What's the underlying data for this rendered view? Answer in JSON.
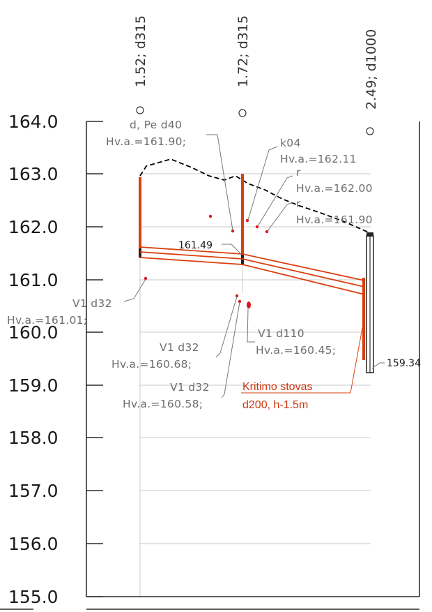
{
  "y_axis": {
    "ticks": [
      {
        "value": 164,
        "label": "164.0"
      },
      {
        "value": 163,
        "label": "163.0"
      },
      {
        "value": 162,
        "label": "162.0"
      },
      {
        "value": 161,
        "label": "161.0"
      },
      {
        "value": 160,
        "label": "160.0"
      },
      {
        "value": 159,
        "label": "159.0"
      },
      {
        "value": 158,
        "label": "158.0"
      },
      {
        "value": 157,
        "label": "157.0"
      },
      {
        "value": 156,
        "label": "156.0"
      },
      {
        "value": 155,
        "label": "155.0"
      }
    ]
  },
  "stations": [
    {
      "label": "1.52; d315"
    },
    {
      "label": "1.72; d315"
    },
    {
      "label": "2.49; d1000"
    }
  ],
  "annotations": {
    "pe_d40": {
      "line1": "d, Pe d40",
      "line2": "Hv.a.=161.90;"
    },
    "k04": {
      "line1": "k04",
      "line2": "Hv.a.=162.11"
    },
    "r1": {
      "line1": "r",
      "line2": "Hv.a.=162.00"
    },
    "r2": {
      "line1": "r",
      "line2": "Hv.a.=161.90"
    },
    "v1_d32_a": {
      "line1": "V1 d32",
      "line2": "Hv.a.=161.01;"
    },
    "v1_d110": {
      "line1": "V1 d110",
      "line2": "Hv.a.=160.45;"
    },
    "v1_d32_b": {
      "line1": "V1 d32",
      "line2": "Hv.a.=160.68;"
    },
    "v1_d32_c": {
      "line1": "V1 d32",
      "line2": "Hv.a.=160.58;"
    },
    "pipe_level": "161.49",
    "bottom_level": "159.34",
    "drop_well": {
      "line1": "Kritimo stovas",
      "line2": "d200, h-1.5m"
    }
  },
  "colors": {
    "pipe": "#d9400f",
    "axis": "#000000",
    "gridline": "#c8c8c8",
    "ground": "#000000",
    "annotation": "#6e6e6e",
    "point": "#e0141e"
  }
}
